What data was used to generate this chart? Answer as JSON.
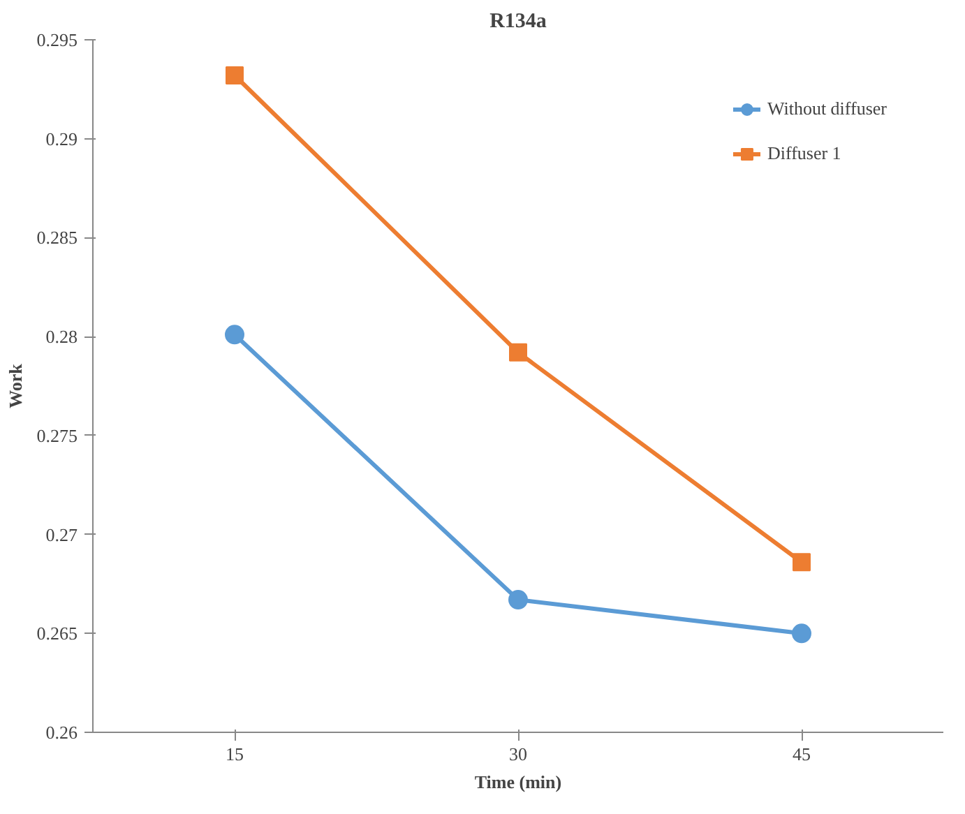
{
  "chart_data": {
    "type": "line",
    "title": "R134a",
    "xlabel": "Time (min)",
    "ylabel": "Work",
    "categories": [
      "15",
      "30",
      "45"
    ],
    "series": [
      {
        "name": "Without diffuser",
        "color": "#5b9bd5",
        "marker": "circle",
        "values": [
          0.2801,
          0.2667,
          0.265
        ]
      },
      {
        "name": "Diffuser 1",
        "color": "#ed7d31",
        "marker": "square",
        "values": [
          0.2932,
          0.2792,
          0.2686
        ]
      }
    ],
    "ylim": [
      0.26,
      0.295
    ],
    "yticks": [
      0.26,
      0.265,
      0.27,
      0.275,
      0.28,
      0.285,
      0.29,
      0.295
    ],
    "grid": false,
    "legend": "top right",
    "line_style": "solid"
  }
}
